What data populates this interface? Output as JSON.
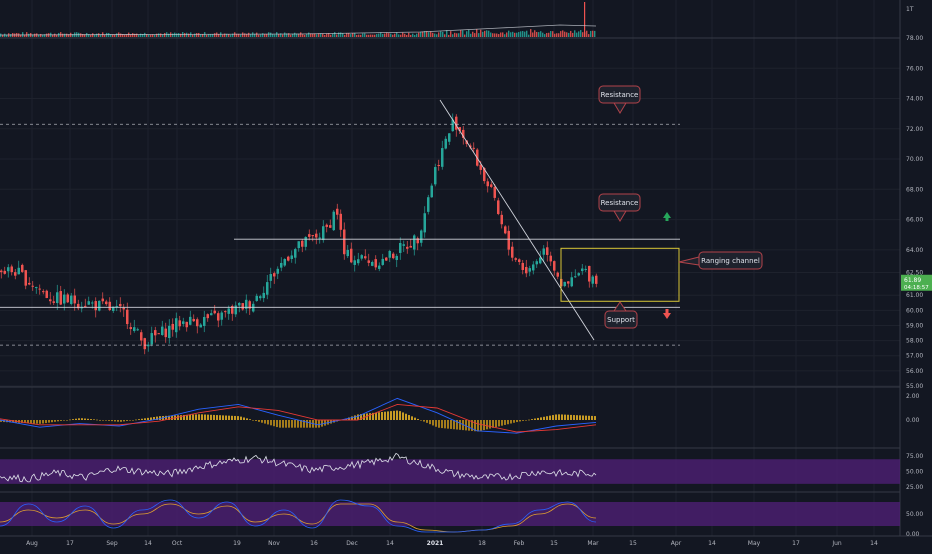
{
  "colors": {
    "background": "#131722",
    "grid": "#1e222d",
    "axis_text": "#b2b5be",
    "separator": "#363a45",
    "up": "#26a69a",
    "down": "#ef5350",
    "wick": "#787b86",
    "line_white": "#d1d4dc",
    "box_yellow": "#d8c637",
    "callout_fill": "#1e222d",
    "callout_border": "#b2434a",
    "price_tag": "#4caf50",
    "arrow_up": "#26a65b",
    "arrow_down": "#ef5350",
    "macd_line": "#2962ff",
    "signal_line": "#e53935",
    "hist_up": "#c79b25",
    "hist_down": "#a37c1c",
    "rsi_band": "#4a1f6e",
    "rsi_line": "#e0e3eb",
    "stoch_k": "#2962ff",
    "stoch_d": "#e0a030"
  },
  "x_axis_labels": [
    "Aug",
    "17",
    "Sep",
    "14",
    "Oct",
    "19",
    "Nov",
    "16",
    "Dec",
    "14",
    "2021",
    "18",
    "Feb",
    "15",
    "Mar",
    "15",
    "Apr",
    "14",
    "May",
    "17",
    "Jun",
    "14"
  ],
  "volume_pane": {
    "scale_label": "1T"
  },
  "current_price": {
    "price": "61.89",
    "countdown": "04:18:57"
  },
  "annotations": [
    {
      "text": "Resistance",
      "name": "resistance-callout-upper"
    },
    {
      "text": "Resistance",
      "name": "resistance-callout-lower"
    },
    {
      "text": "Ranging channel",
      "name": "ranging-channel-callout"
    },
    {
      "text": "Support",
      "name": "support-callout"
    }
  ],
  "chart_data": [
    {
      "type": "candlestick",
      "pane": "price",
      "y_ticks": [
        "78.00",
        "76.00",
        "74.00",
        "72.00",
        "70.00",
        "68.00",
        "66.00",
        "64.00",
        "62.50",
        "61.00",
        "60.00",
        "59.00",
        "58.00",
        "57.00",
        "56.00",
        "55.00"
      ],
      "ylim": [
        55,
        78
      ],
      "series": [
        {
          "name": "close_path_approx",
          "x": [
            "2020-07-20",
            "2020-08-03",
            "2020-08-17",
            "2020-08-31",
            "2020-09-07",
            "2020-09-21",
            "2020-10-05",
            "2020-10-19",
            "2020-11-02",
            "2020-11-16",
            "2020-11-20",
            "2020-11-23",
            "2020-12-07",
            "2020-12-21",
            "2020-12-28",
            "2021-01-04",
            "2021-01-11",
            "2021-01-18",
            "2021-01-25",
            "2021-02-01",
            "2021-02-08",
            "2021-02-15",
            "2021-02-22",
            "2021-03-01"
          ],
          "values": [
            62.6,
            60.8,
            60.5,
            59.8,
            57.8,
            59.2,
            59.5,
            60.6,
            63.8,
            65.3,
            66.8,
            63.6,
            63.2,
            64.8,
            69.5,
            72.6,
            70.5,
            67.8,
            64.0,
            62.5,
            64.2,
            61.4,
            62.6,
            61.9
          ]
        }
      ],
      "levels": [
        {
          "name": "resistance-upper",
          "value": 72.3,
          "style": "dashed"
        },
        {
          "name": "resistance-lower",
          "value": 64.7,
          "style": "solid"
        },
        {
          "name": "support",
          "value": 60.2,
          "style": "solid"
        },
        {
          "name": "support-lower",
          "value": 57.7,
          "style": "dashed"
        }
      ],
      "ranging_channel": {
        "top": 64.1,
        "bottom": 60.6
      }
    },
    {
      "type": "bar",
      "pane": "volume",
      "y_ticks": [
        "1T"
      ]
    },
    {
      "type": "line",
      "pane": "macd",
      "y_ticks": [
        "2.00",
        "0.00"
      ],
      "ylim": [
        -2,
        2.5
      ],
      "series": [
        {
          "name": "macd",
          "values": [
            0.0,
            -0.6,
            -0.3,
            -0.5,
            0.1,
            0.9,
            1.3,
            0.4,
            -0.4,
            0.3,
            1.8,
            0.6,
            -0.9,
            -1.1,
            -0.5,
            -0.2
          ]
        },
        {
          "name": "signal",
          "values": [
            0.1,
            -0.4,
            -0.4,
            -0.4,
            -0.1,
            0.6,
            1.1,
            0.8,
            0.0,
            0.0,
            1.3,
            1.0,
            -0.3,
            -1.0,
            -0.8,
            -0.4
          ]
        }
      ]
    },
    {
      "type": "line",
      "pane": "rsi",
      "y_ticks": [
        "75.00",
        "50.00",
        "25.00"
      ],
      "ylim": [
        20,
        85
      ],
      "band": [
        30,
        70
      ],
      "series": [
        {
          "name": "rsi",
          "values": [
            42,
            38,
            48,
            40,
            55,
            50,
            46,
            58,
            66,
            72,
            62,
            52,
            58,
            64,
            74,
            60,
            46,
            40,
            42,
            50,
            46,
            48
          ]
        }
      ]
    },
    {
      "type": "line",
      "pane": "stochastic",
      "y_ticks": [
        "50.00",
        "0.00"
      ],
      "ylim": [
        0,
        100
      ],
      "band": [
        20,
        80
      ],
      "series": [
        {
          "name": "%K",
          "values": [
            20,
            75,
            30,
            70,
            15,
            60,
            85,
            40,
            80,
            20,
            60,
            15,
            85,
            70,
            20,
            5,
            5,
            10,
            25,
            60,
            80,
            30
          ]
        },
        {
          "name": "%D",
          "values": [
            30,
            60,
            40,
            60,
            25,
            50,
            75,
            50,
            70,
            30,
            50,
            25,
            75,
            75,
            30,
            10,
            5,
            10,
            20,
            50,
            75,
            40
          ]
        }
      ]
    }
  ]
}
